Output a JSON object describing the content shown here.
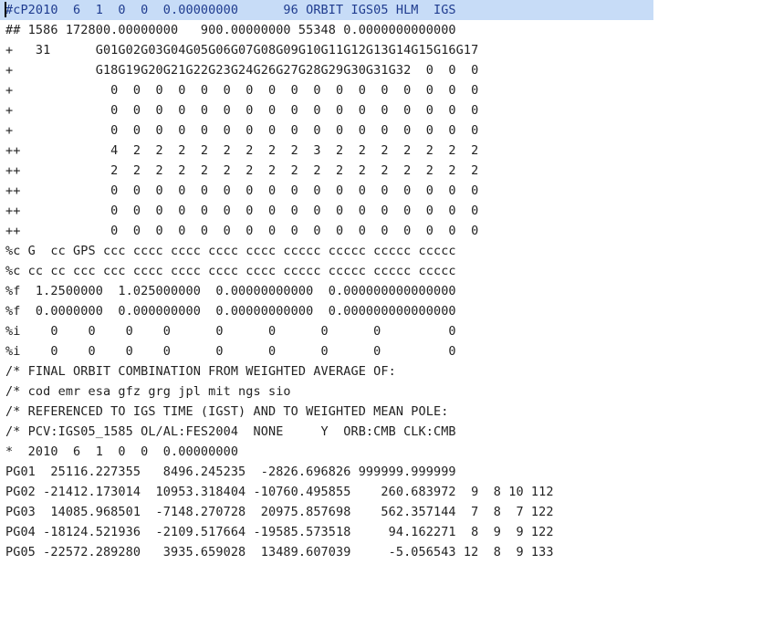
{
  "editor": {
    "lines": [
      "#cP2010  6  1  0  0  0.00000000      96 ORBIT IGS05 HLM  IGS",
      "## 1586 172800.00000000   900.00000000 55348 0.0000000000000",
      "+   31      G01G02G03G04G05G06G07G08G09G10G11G12G13G14G15G16G17",
      "+           G18G19G20G21G22G23G24G26G27G28G29G30G31G32  0  0  0",
      "+             0  0  0  0  0  0  0  0  0  0  0  0  0  0  0  0  0",
      "+             0  0  0  0  0  0  0  0  0  0  0  0  0  0  0  0  0",
      "+             0  0  0  0  0  0  0  0  0  0  0  0  0  0  0  0  0",
      "++            4  2  2  2  2  2  2  2  2  3  2  2  2  2  2  2  2",
      "++            2  2  2  2  2  2  2  2  2  2  2  2  2  2  2  2  2",
      "++            0  0  0  0  0  0  0  0  0  0  0  0  0  0  0  0  0",
      "++            0  0  0  0  0  0  0  0  0  0  0  0  0  0  0  0  0",
      "++            0  0  0  0  0  0  0  0  0  0  0  0  0  0  0  0  0",
      "%c G  cc GPS ccc cccc cccc cccc cccc ccccc ccccc ccccc ccccc",
      "%c cc cc ccc ccc cccc cccc cccc cccc ccccc ccccc ccccc ccccc",
      "%f  1.2500000  1.025000000  0.00000000000  0.000000000000000",
      "%f  0.0000000  0.000000000  0.00000000000  0.000000000000000",
      "%i    0    0    0    0      0      0      0      0         0",
      "%i    0    0    0    0      0      0      0      0         0",
      "/* FINAL ORBIT COMBINATION FROM WEIGHTED AVERAGE OF:",
      "/* cod emr esa gfz grg jpl mit ngs sio",
      "/* REFERENCED TO IGS TIME (IGST) AND TO WEIGHTED MEAN POLE:",
      "/* PCV:IGS05_1585 OL/AL:FES2004  NONE     Y  ORB:CMB CLK:CMB",
      "*  2010  6  1  0  0  0.00000000",
      "PG01  25116.227355   8496.245235  -2826.696826 999999.999999",
      "PG02 -21412.173014  10953.318404 -10760.495855    260.683972  9  8 10 112",
      "PG03  14085.968501  -7148.270728  20975.857698    562.357144  7  8  7 122",
      "PG04 -18124.521936  -2109.517664 -19585.573518     94.162271  8  9  9 122",
      "PG05 -22572.289280   3935.659028  13489.607039     -5.056543 12  8  9 133"
    ]
  }
}
